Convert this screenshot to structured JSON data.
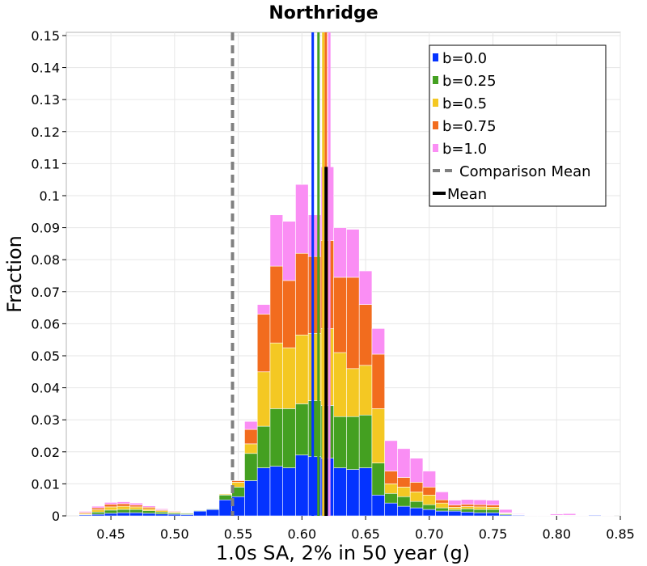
{
  "chart_data": {
    "type": "bar",
    "stacked": true,
    "title": "Northridge",
    "xlabel": "1.0s SA, 2% in 50 year (g)",
    "ylabel": "Fraction",
    "xlim": [
      0.415,
      0.85
    ],
    "ylim": [
      0,
      0.151
    ],
    "xticks": [
      "0.45",
      "0.50",
      "0.55",
      "0.60",
      "0.65",
      "0.70",
      "0.75",
      "0.80",
      "0.85"
    ],
    "yticks": [
      "0",
      "0.01",
      "0.02",
      "0.03",
      "0.04",
      "0.05",
      "0.06",
      "0.07",
      "0.08",
      "0.09",
      "0.1",
      "0.11",
      "0.12",
      "0.13",
      "0.14",
      "0.15"
    ],
    "grid": true,
    "legend_position": "top-right",
    "bin_width": 0.01,
    "bin_centers": [
      0.42,
      0.43,
      0.44,
      0.45,
      0.46,
      0.47,
      0.48,
      0.49,
      0.5,
      0.51,
      0.52,
      0.53,
      0.54,
      0.55,
      0.56,
      0.57,
      0.58,
      0.59,
      0.6,
      0.61,
      0.62,
      0.63,
      0.64,
      0.65,
      0.66,
      0.67,
      0.68,
      0.69,
      0.7,
      0.71,
      0.72,
      0.73,
      0.74,
      0.75,
      0.76,
      0.77,
      0.78,
      0.79,
      0.8,
      0.81,
      0.82,
      0.83,
      0.84
    ],
    "series": [
      {
        "name": "b=0.0",
        "color": "#0433ff",
        "values": [
          0,
          0.0003,
          0.0005,
          0.0008,
          0.001,
          0.001,
          0.0008,
          0.0006,
          0.0005,
          0.0004,
          0.0015,
          0.002,
          0.005,
          0.006,
          0.011,
          0.015,
          0.0155,
          0.015,
          0.019,
          0.0185,
          0.018,
          0.015,
          0.0145,
          0.015,
          0.0065,
          0.004,
          0.003,
          0.0025,
          0.002,
          0.0015,
          0.0015,
          0.0012,
          0.001,
          0.001,
          0.0003,
          0.0002,
          0.0001,
          0.0001,
          0.0001,
          0.0001,
          0.0001,
          0.0002,
          0.0001
        ]
      },
      {
        "name": "b=0.25",
        "color": "#44a021",
        "values": [
          0,
          0.0002,
          0.0007,
          0.001,
          0.001,
          0.001,
          0.0008,
          0.0006,
          0.0004,
          0.0003,
          0.0002,
          0.0002,
          0.0015,
          0.003,
          0.0085,
          0.013,
          0.018,
          0.0185,
          0.016,
          0.0175,
          0.0165,
          0.016,
          0.0165,
          0.0165,
          0.01,
          0.003,
          0.003,
          0.002,
          0.0015,
          0.001,
          0.0005,
          0.001,
          0.001,
          0.001,
          0.0003,
          0.0001,
          0,
          0,
          0.0001,
          0.0001,
          0,
          0,
          0
        ]
      },
      {
        "name": "b=0.5",
        "color": "#f4c823",
        "values": [
          0,
          0.0003,
          0.0007,
          0.001,
          0.001,
          0.0008,
          0.0006,
          0.0004,
          0.0003,
          0.0002,
          0.0001,
          0.0001,
          0.0003,
          0.0015,
          0.003,
          0.017,
          0.0205,
          0.019,
          0.0215,
          0.021,
          0.024,
          0.02,
          0.015,
          0.0155,
          0.017,
          0.003,
          0.003,
          0.003,
          0.003,
          0.0015,
          0.0007,
          0.0007,
          0.0008,
          0.0007,
          0.0002,
          0.0001,
          0,
          0,
          0,
          0,
          0,
          0,
          0
        ]
      },
      {
        "name": "b=0.75",
        "color": "#f26c1e",
        "values": [
          0,
          0.0003,
          0.0006,
          0.0008,
          0.0008,
          0.0006,
          0.0005,
          0.0003,
          0.0002,
          0.0001,
          0.0001,
          0.0001,
          0.0001,
          0.0005,
          0.0045,
          0.018,
          0.024,
          0.021,
          0.0255,
          0.024,
          0.0275,
          0.0235,
          0.0285,
          0.019,
          0.017,
          0.004,
          0.003,
          0.003,
          0.0025,
          0.001,
          0.0007,
          0.0007,
          0.0007,
          0.0007,
          0.0002,
          0.0001,
          0,
          0,
          0,
          0,
          0,
          0,
          0
        ]
      },
      {
        "name": "b=1.0",
        "color": "#fa8ef4",
        "values": [
          0,
          0.0003,
          0.0005,
          0.0006,
          0.0006,
          0.0006,
          0.0004,
          0.0003,
          0.0002,
          0.0001,
          0.0001,
          0.0001,
          0.0001,
          0.0001,
          0.0025,
          0.003,
          0.016,
          0.0185,
          0.0215,
          0.013,
          0.023,
          0.0155,
          0.015,
          0.0105,
          0.008,
          0.0095,
          0.009,
          0.0075,
          0.005,
          0.0025,
          0.0015,
          0.0015,
          0.0015,
          0.0015,
          0.001,
          0.0002,
          0.0001,
          0.0001,
          0.0004,
          0.0005,
          0.0001,
          0.0001,
          0.0001
        ]
      }
    ],
    "mean_lines": [
      {
        "series": "b=0.0",
        "color": "#0433ff",
        "x": 0.6085
      },
      {
        "series": "b=0.25",
        "color": "#44a021",
        "x": 0.613
      },
      {
        "series": "b=0.5",
        "color": "#f4c823",
        "x": 0.6168
      },
      {
        "series": "b=0.75",
        "color": "#f26c1e",
        "x": 0.6188
      },
      {
        "series": "b=1.0",
        "color": "#fa8ef4",
        "x": 0.6215
      }
    ],
    "mean": {
      "label": "Mean",
      "x": 0.619,
      "color": "#000000",
      "ymax": 0.109
    },
    "comparison_mean": {
      "label": "Comparison Mean",
      "x": 0.5455,
      "color": "#808080"
    },
    "legend": [
      {
        "label": "b=0.0",
        "kind": "swatch",
        "color": "#0433ff"
      },
      {
        "label": "b=0.25",
        "kind": "swatch",
        "color": "#44a021"
      },
      {
        "label": "b=0.5",
        "kind": "swatch",
        "color": "#f4c823"
      },
      {
        "label": "b=0.75",
        "kind": "swatch",
        "color": "#f26c1e"
      },
      {
        "label": "b=1.0",
        "kind": "swatch",
        "color": "#fa8ef4"
      },
      {
        "label": "Comparison Mean",
        "kind": "dashed",
        "color": "#808080"
      },
      {
        "label": "Mean",
        "kind": "solid",
        "color": "#000000"
      }
    ]
  }
}
